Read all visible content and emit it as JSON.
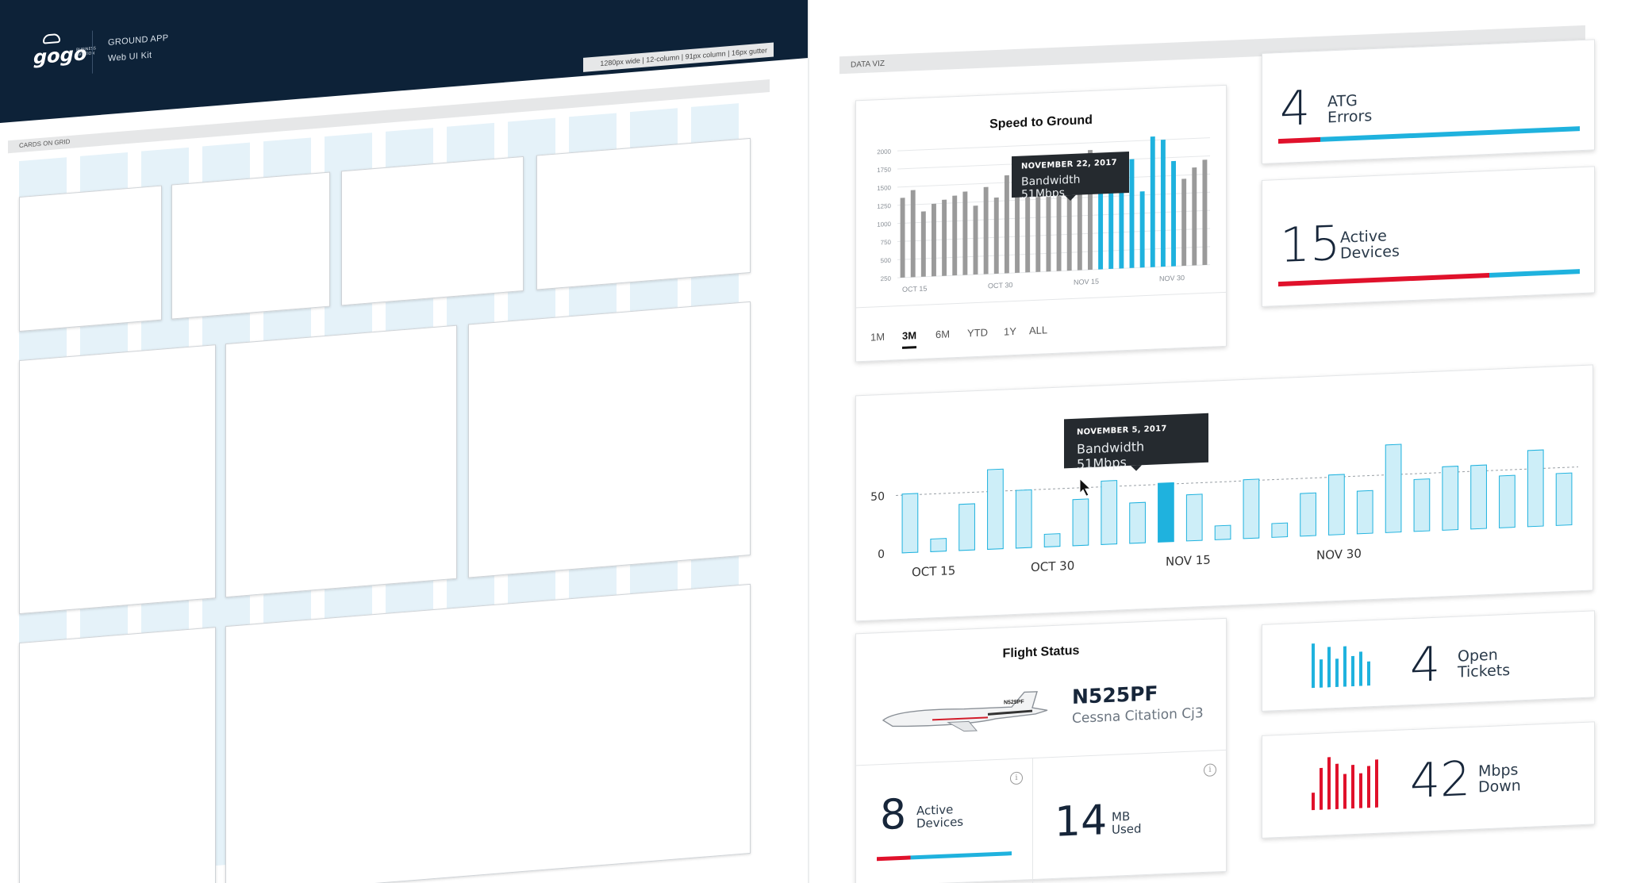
{
  "left": {
    "logo": {
      "word": "gogo",
      "sub": "BUSINESS AVIATION"
    },
    "app_title": "GROUND APP",
    "app_subtitle": "Web UI Kit",
    "grid_spec": "1280px wide | 12-column | 91px column | 16px gutter",
    "section_label": "CARDS ON GRID"
  },
  "right": {
    "section_label": "DATA VIZ",
    "speed_card": {
      "title": "Speed to Ground",
      "tooltip": {
        "date": "NOVEMBER 22, 2017",
        "value": "Bandwidth 51Mbps"
      },
      "ranges": [
        "1M",
        "3M",
        "6M",
        "YTD",
        "1Y",
        "ALL"
      ],
      "active_range": "3M"
    },
    "atg_card": {
      "value": "4",
      "label_line1": "ATG",
      "label_line2": "Errors",
      "red_fraction": 0.14
    },
    "devices_card": {
      "value": "15",
      "label_line1": "Active",
      "label_line2": "Devices",
      "red_fraction": 0.7
    },
    "bandwidth_card": {
      "tooltip": {
        "date": "NOVEMBER 5, 2017",
        "value": "Bandwidth 51Mbps"
      }
    },
    "flight_card": {
      "title": "Flight Status",
      "tail_number": "N525PF",
      "aircraft_model": "Cessna Citation Cj3",
      "aircraft_livery": "N525PF",
      "left_stat": {
        "value": "8",
        "label_line1": "Active",
        "label_line2": "Devices",
        "red_fraction": 0.25
      },
      "right_stat": {
        "value": "14",
        "label_line1": "MB",
        "label_line2": "Used"
      }
    },
    "tickets_card": {
      "value": "4",
      "label_line1": "Open",
      "label_line2": "Tickets"
    },
    "mbps_card": {
      "value": "42",
      "label_line1": "Mbps",
      "label_line2": "Down"
    },
    "info_glyph": "i"
  },
  "colors": {
    "navy": "#0d2238",
    "blue": "#1fb2de",
    "light_blue": "#cdeef8",
    "red": "#e0112b",
    "gray_bar": "#9a9a9a"
  },
  "chart_data": [
    {
      "type": "bar",
      "title": "Speed to Ground",
      "ylim": [
        250,
        2000
      ],
      "yticks": [
        250,
        500,
        750,
        1000,
        1250,
        1500,
        1750,
        2000
      ],
      "xticks": [
        "OCT 15",
        "OCT 30",
        "NOV 15",
        "NOV 30"
      ],
      "values": [
        1350,
        1450,
        1150,
        1250,
        1300,
        1350,
        1400,
        1200,
        1450,
        1300,
        1600,
        1500,
        1400,
        1650,
        1600,
        1700,
        1750,
        1600,
        1900,
        1800,
        1500,
        1850,
        1750,
        1300,
        2050,
        2000,
        1700,
        1450,
        1600,
        1700
      ],
      "highlight_from": 19
    },
    {
      "type": "bar",
      "ylim": [
        0,
        110
      ],
      "yticks": [
        0,
        50
      ],
      "reference_line": 50,
      "xticks": [
        "OCT 15",
        "OCT 30",
        "NOV 15",
        "NOV 30"
      ],
      "values": [
        51,
        11,
        40,
        69,
        50,
        11,
        40,
        55,
        35,
        51,
        40,
        12,
        51,
        12,
        37,
        52,
        37,
        76,
        45,
        55,
        55,
        45,
        66,
        45
      ],
      "highlight_index": 9
    },
    {
      "type": "bar",
      "name": "tickets",
      "values": [
        44,
        28,
        40,
        28,
        40,
        30,
        34,
        24
      ]
    },
    {
      "type": "bar",
      "name": "mbps",
      "values": [
        20,
        48,
        60,
        52,
        40,
        50,
        40,
        48,
        55
      ]
    }
  ]
}
